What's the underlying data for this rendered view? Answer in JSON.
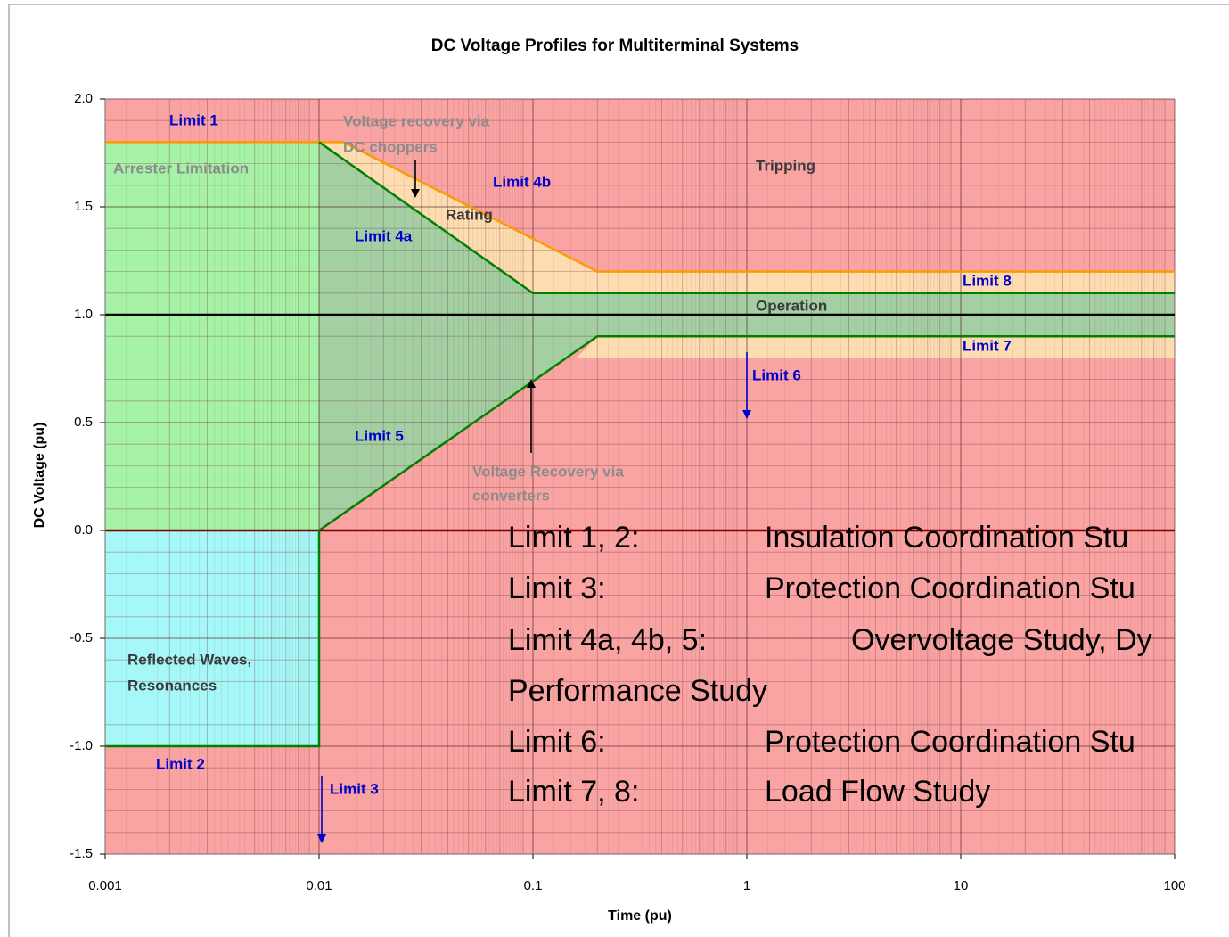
{
  "chart_data": {
    "type": "line",
    "title": "DC Voltage Profiles for Multiterminal Systems",
    "xlabel": "Time (pu)",
    "ylabel": "DC Voltage (pu)",
    "xscale": "log",
    "xlim": [
      0.001,
      100
    ],
    "ylim": [
      -1.5,
      2.0
    ],
    "xticks": [
      0.001,
      0.01,
      0.1,
      1,
      10,
      100
    ],
    "yticks": [
      {
        "value": -1.5,
        "label": "-1.5"
      },
      {
        "value": -1,
        "label": "-1.0"
      },
      {
        "value": -0.5,
        "label": "-0.5"
      },
      {
        "value": 0,
        "label": "0.0"
      },
      {
        "value": 0.5,
        "label": "0.5"
      },
      {
        "value": 1,
        "label": "1.0"
      },
      {
        "value": 1.5,
        "label": "1.5"
      },
      {
        "value": 2,
        "label": "2.0"
      }
    ],
    "grid": true,
    "minor_grid": true,
    "regions": [
      {
        "color": "#f9a3a3",
        "x": [
          0.001,
          100,
          100,
          0.001
        ],
        "y": [
          -1.5,
          -1.5,
          2.0,
          2.0
        ]
      },
      {
        "color": "#a6f2a6",
        "x": [
          0.001,
          0.01,
          0.01,
          0.001
        ],
        "y": [
          0,
          0,
          1.8,
          1.8
        ]
      },
      {
        "color": "#a6f7f7",
        "x": [
          0.001,
          0.01,
          0.01,
          0.001
        ],
        "y": [
          -1,
          -1,
          0,
          0
        ]
      },
      {
        "color": "#fcdcb0",
        "x": [
          0.01,
          0.013,
          0.2,
          100,
          100,
          0.1
        ],
        "y": [
          1.8,
          1.8,
          1.2,
          1.2,
          1.1,
          1.1
        ]
      },
      {
        "color": "#a3cfa3",
        "x": [
          0.01,
          0.1,
          100,
          100,
          0.2,
          0.01
        ],
        "y": [
          1.8,
          1.1,
          1.1,
          0.9,
          0.9,
          0
        ]
      },
      {
        "color": "#fcdcb0",
        "x": [
          0.16,
          0.2,
          100,
          100
        ],
        "y": [
          0.8,
          0.9,
          0.9,
          0.8
        ]
      }
    ],
    "series": [
      {
        "color": "#ff9900",
        "x": [
          0.001,
          0.013,
          0.2,
          100
        ],
        "values": [
          1.8,
          1.8,
          1.2,
          1.2
        ]
      },
      {
        "color": "#008000",
        "x": [
          0.01,
          0.1,
          100
        ],
        "values": [
          1.8,
          1.1,
          1.1
        ]
      },
      {
        "color": "#000000",
        "x": [
          0.001,
          100
        ],
        "values": [
          1.0,
          1.0
        ]
      },
      {
        "color": "#008000",
        "x": [
          0.01,
          0.2,
          100
        ],
        "values": [
          0,
          0.9,
          0.9
        ]
      },
      {
        "color": "#800000",
        "x": [
          0.001,
          100
        ],
        "values": [
          0,
          0
        ]
      },
      {
        "color": "#008000",
        "x": [
          0.001,
          0.01,
          0.01
        ],
        "values": [
          -1,
          -1,
          0
        ]
      }
    ],
    "annotations": [
      "Limit 1",
      "Voltage recovery via",
      "DC choppers",
      "Arrester Limitation",
      "Tripping",
      "Limit 4b",
      "Rating",
      "Limit 4a",
      "Limit 8",
      "Operation",
      "Limit 7",
      "Limit 6",
      "Limit 5",
      "Voltage Recovery via",
      "converters",
      "Reflected Waves,",
      "Resonances",
      "Limit 2",
      "Limit 3"
    ],
    "notes": [
      [
        "Limit 1, 2:",
        "Insulation Coordination Stu"
      ],
      [
        "Limit 3:",
        "Protection Coordination Stu"
      ],
      [
        "Limit 4a, 4b, 5:",
        "Overvoltage Study, Dy"
      ],
      [
        "Performance Study",
        null
      ],
      [
        "Limit 6:",
        "Protection Coordination Stu"
      ],
      [
        "Limit 7, 8:",
        "Load Flow Study"
      ]
    ]
  }
}
